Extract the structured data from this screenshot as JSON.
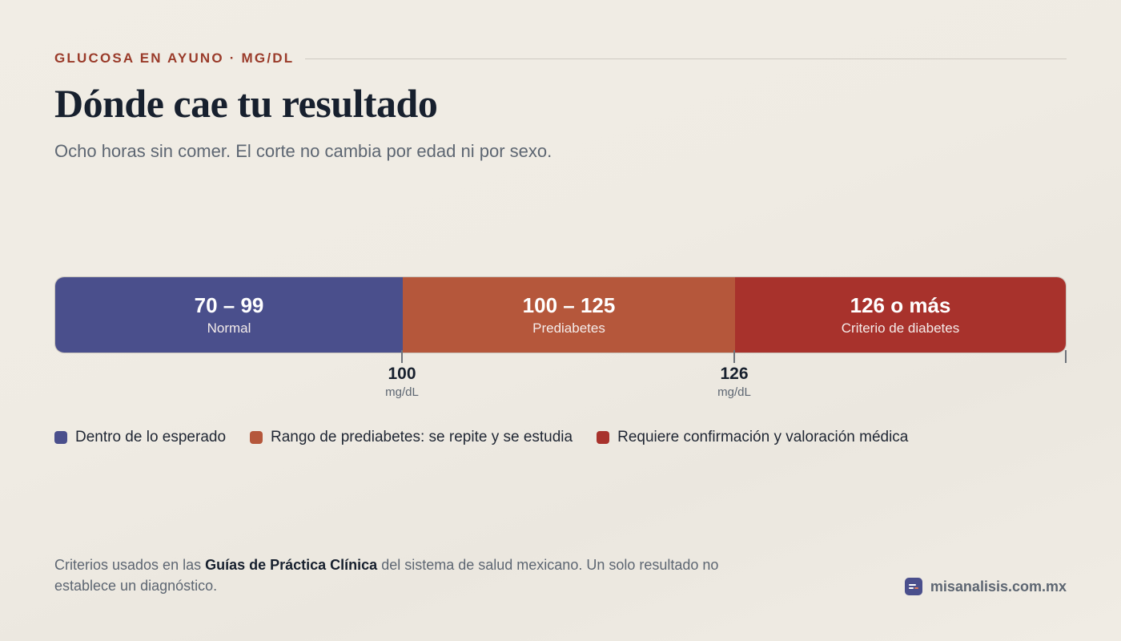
{
  "header": {
    "eyebrow": "GLUCOSA EN AYUNO · MG/DL",
    "title": "Dónde cae tu resultado",
    "subtitle": "Ocho horas sin comer. El corte no cambia por edad ni por sexo."
  },
  "ranges": [
    {
      "range": "70 – 99",
      "label": "Normal",
      "color": "#4a4f8c"
    },
    {
      "range": "100 – 125",
      "label": "Prediabetes",
      "color": "#b5573b"
    },
    {
      "range": "126 o más",
      "label": "Criterio de diabetes",
      "color": "#a8322c"
    }
  ],
  "cutoffs": [
    {
      "value": "100",
      "unit": "mg/dL"
    },
    {
      "value": "126",
      "unit": "mg/dL"
    }
  ],
  "legend": [
    {
      "text": "Dentro de lo esperado",
      "color": "#4a4f8c"
    },
    {
      "text": "Rango de prediabetes: se repite y se estudia",
      "color": "#b5573b"
    },
    {
      "text": "Requiere confirmación y valoración médica",
      "color": "#a8322c"
    }
  ],
  "footer": {
    "note_before": "Criterios usados en las ",
    "note_bold": "Guías de Práctica Clínica",
    "note_after": " del sistema de salud mexicano. Un solo resultado no establece un diagnóstico.",
    "brand": "misanalisis.com.mx"
  },
  "colors": {
    "accent": "#9a3b2a",
    "normal": "#4a4f8c",
    "prediabetes": "#b5573b",
    "diabetes": "#a8322c"
  }
}
